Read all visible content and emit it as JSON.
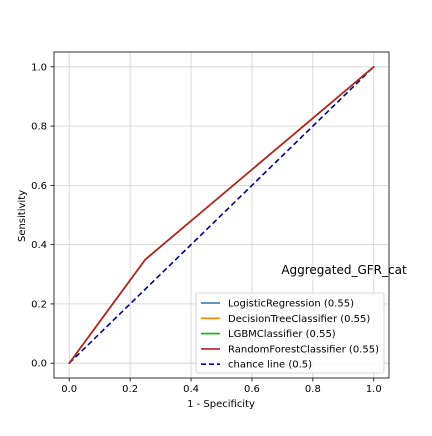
{
  "chart_data": {
    "type": "line",
    "title": "",
    "xlabel": "1 - Specificity",
    "ylabel": "Sensitivity",
    "xlim": [
      -0.05,
      1.05
    ],
    "ylim": [
      -0.05,
      1.05
    ],
    "xticks": [
      0.0,
      0.2,
      0.4,
      0.6,
      0.8,
      1.0
    ],
    "yticks": [
      0.0,
      0.2,
      0.4,
      0.6,
      0.8,
      1.0
    ],
    "xtick_labels": [
      "0.0",
      "0.2",
      "0.4",
      "0.6",
      "0.8",
      "1.0"
    ],
    "ytick_labels": [
      "0.0",
      "0.2",
      "0.4",
      "0.6",
      "0.8",
      "1.0"
    ],
    "grid": true,
    "legend_position": "lower-right",
    "annotation": "Aggregated_GFR_cat",
    "series": [
      {
        "name": "LogisticRegression (0.55)",
        "color": "#1f77b4",
        "style": "solid",
        "x": [
          0.0,
          0.25,
          1.0
        ],
        "y": [
          0.0,
          0.35,
          1.0
        ]
      },
      {
        "name": "DecisionTreeClassifier (0.55)",
        "color": "#ff7f0e",
        "style": "solid",
        "x": [
          0.0,
          0.25,
          1.0
        ],
        "y": [
          0.0,
          0.35,
          1.0
        ]
      },
      {
        "name": "LGBMClassifier (0.55)",
        "color": "#2ca02c",
        "style": "solid",
        "x": [
          0.0,
          0.25,
          1.0
        ],
        "y": [
          0.0,
          0.35,
          1.0
        ]
      },
      {
        "name": "RandomForestClassifier (0.55)",
        "color": "#b22222",
        "style": "solid",
        "x": [
          0.0,
          0.25,
          1.0
        ],
        "y": [
          0.0,
          0.35,
          1.0
        ]
      },
      {
        "name": "chance line (0.5)",
        "color": "#000080",
        "style": "dashed",
        "x": [
          0.0,
          1.0
        ],
        "y": [
          0.0,
          1.0
        ]
      }
    ]
  }
}
